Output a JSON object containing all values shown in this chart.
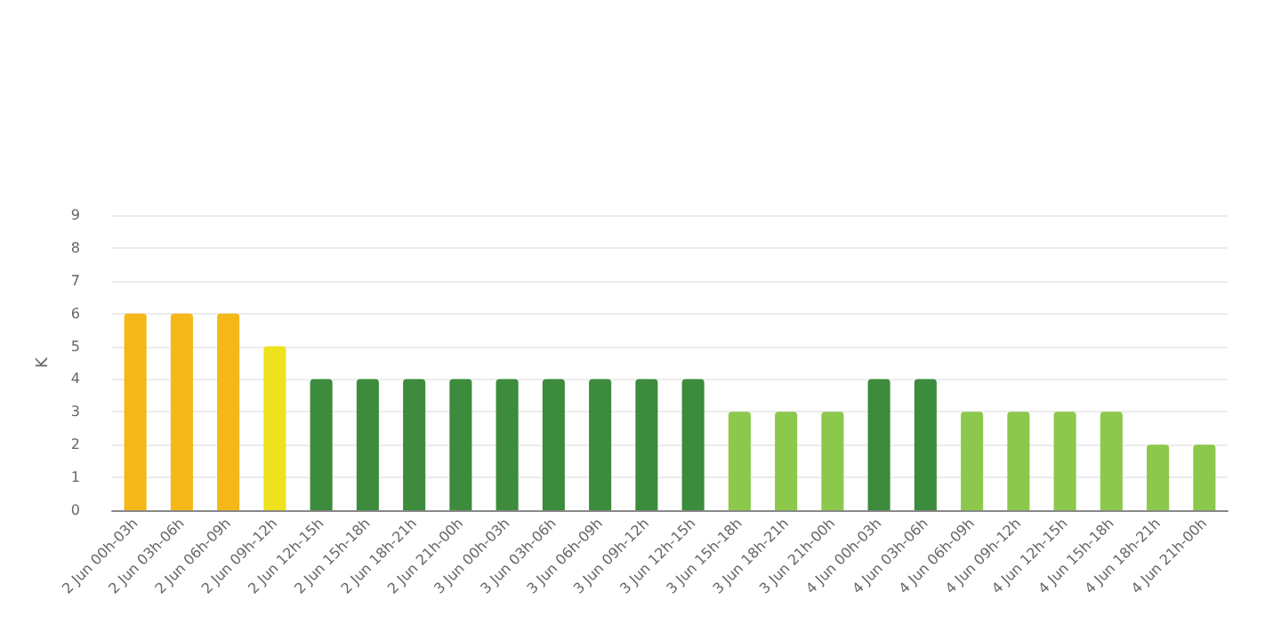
{
  "chart_data": {
    "type": "bar",
    "ylabel": "K",
    "categories": [
      "2 Jun 00h-03h",
      "2 Jun 03h-06h",
      "2 Jun 06h-09h",
      "2 Jun 09h-12h",
      "2 Jun 12h-15h",
      "2 Jun 15h-18h",
      "2 Jun 18h-21h",
      "2 Jun 21h-00h",
      "3 Jun 00h-03h",
      "3 Jun 03h-06h",
      "3 Jun 06h-09h",
      "3 Jun 09h-12h",
      "3 Jun 12h-15h",
      "3 Jun 15h-18h",
      "3 Jun 18h-21h",
      "3 Jun 21h-00h",
      "4 Jun 00h-03h",
      "4 Jun 03h-06h",
      "4 Jun 06h-09h",
      "4 Jun 09h-12h",
      "4 Jun 12h-15h",
      "4 Jun 15h-18h",
      "4 Jun 18h-21h",
      "4 Jun 21h-00h"
    ],
    "values": [
      6,
      6,
      6,
      5,
      4,
      4,
      4,
      4,
      4,
      4,
      4,
      4,
      4,
      3,
      3,
      3,
      4,
      4,
      3,
      3,
      3,
      3,
      2,
      2
    ],
    "colors": [
      "#f5b818",
      "#f5b818",
      "#f5b818",
      "#ede21c",
      "#3d8b3d",
      "#3d8b3d",
      "#3d8b3d",
      "#3d8b3d",
      "#3d8b3d",
      "#3d8b3d",
      "#3d8b3d",
      "#3d8b3d",
      "#3d8b3d",
      "#8cc84b",
      "#8cc84b",
      "#8cc84b",
      "#3d8b3d",
      "#3d8b3d",
      "#8cc84b",
      "#8cc84b",
      "#8cc84b",
      "#8cc84b",
      "#8cc84b",
      "#8cc84b"
    ],
    "ylim": [
      0,
      9
    ],
    "yticks": [
      0,
      1,
      2,
      3,
      4,
      5,
      6,
      7,
      8,
      9
    ],
    "grid": "y"
  }
}
